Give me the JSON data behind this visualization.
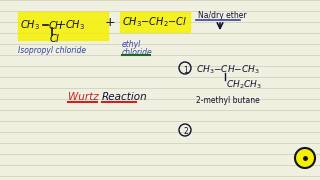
{
  "bg_color": "#f0f0e0",
  "line_color": "#d0d0bb",
  "highlight_yellow": "#f5f000",
  "text_blue": "#3344aa",
  "text_green": "#226622",
  "text_red": "#cc2222",
  "text_dark": "#111133",
  "text_teal": "#226666",
  "isopropyl_label": "Isopropyl chloride",
  "ethyl_label1": "ethyl",
  "ethyl_label2": "chloride",
  "na_text": "Na/dry ether",
  "wurtz1": "Wurtz",
  "wurtz2": "Reaction",
  "product_name": "2-methyl butane",
  "circle1": "1",
  "circle2": "2"
}
